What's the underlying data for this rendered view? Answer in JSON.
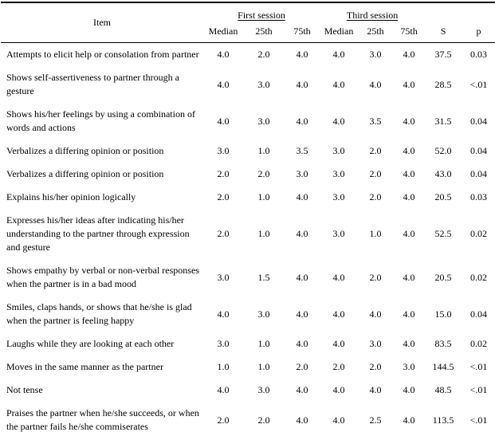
{
  "table": {
    "header": {
      "item": "Item",
      "group1": "First session",
      "group2": "Third session",
      "subcols": [
        "Median",
        "25th",
        "75th",
        "Median",
        "25th",
        "75th",
        "S",
        "p"
      ]
    },
    "rows": [
      {
        "item": "Attempts to elicit help or consolation from partner",
        "values": [
          "4.0",
          "2.0",
          "4.0",
          "4.0",
          "3.0",
          "4.0",
          "37.5",
          "0.03"
        ]
      },
      {
        "item": "Shows self-assertiveness to partner through a gesture",
        "values": [
          "4.0",
          "3.0",
          "4.0",
          "4.0",
          "4.0",
          "4.0",
          "28.5",
          "<.01"
        ]
      },
      {
        "item": "Shows his/her feelings by using a combination of words and actions",
        "values": [
          "4.0",
          "3.0",
          "4.0",
          "4.0",
          "3.5",
          "4.0",
          "31.5",
          "0.04"
        ]
      },
      {
        "item": "Verbalizes a differing opinion or position",
        "values": [
          "3.0",
          "1.0",
          "3.5",
          "3.0",
          "2.0",
          "4.0",
          "52.0",
          "0.04"
        ]
      },
      {
        "item": "Verbalizes a differing opinion or position",
        "values": [
          "2.0",
          "2.0",
          "3.0",
          "3.0",
          "2.0",
          "4.0",
          "43.0",
          "0.04"
        ]
      },
      {
        "item": "Explains his/her opinion logically",
        "values": [
          "2.0",
          "1.0",
          "4.0",
          "3.0",
          "2.0",
          "4.0",
          "20.5",
          "0.03"
        ]
      },
      {
        "item": "Expresses his/her ideas after indicating his/her understanding to the partner through expression and gesture",
        "values": [
          "2.0",
          "1.0",
          "4.0",
          "3.0",
          "1.0",
          "4.0",
          "52.5",
          "0.02"
        ]
      },
      {
        "item": "Shows empathy by verbal or non-verbal responses when the partner is in a bad mood",
        "values": [
          "3.0",
          "1.5",
          "4.0",
          "4.0",
          "2.0",
          "4.0",
          "20.5",
          "0.02"
        ]
      },
      {
        "item": "Smiles, claps hands, or shows that he/she is glad when the partner is feeling happy",
        "values": [
          "4.0",
          "3.0",
          "4.0",
          "4.0",
          "4.0",
          "4.0",
          "15.0",
          "0.04"
        ]
      },
      {
        "item": "Laughs while they are looking at each other",
        "values": [
          "3.0",
          "1.0",
          "4.0",
          "4.0",
          "3.0",
          "4.0",
          "83.5",
          "0.02"
        ]
      },
      {
        "item": "Moves in the same manner as the partner",
        "values": [
          "1.0",
          "1.0",
          "2.0",
          "2.0",
          "2.0",
          "3.0",
          "144.5",
          "<.01"
        ]
      },
      {
        "item": "Not tense",
        "values": [
          "4.0",
          "3.0",
          "4.0",
          "4.0",
          "4.0",
          "4.0",
          "48.5",
          "<.01"
        ]
      },
      {
        "item": "Praises the partner when he/she succeeds, or when the partner fails he/she commiserates",
        "values": [
          "2.0",
          "2.0",
          "4.0",
          "4.0",
          "2.5",
          "4.0",
          "113.5",
          "<.01"
        ]
      }
    ]
  }
}
